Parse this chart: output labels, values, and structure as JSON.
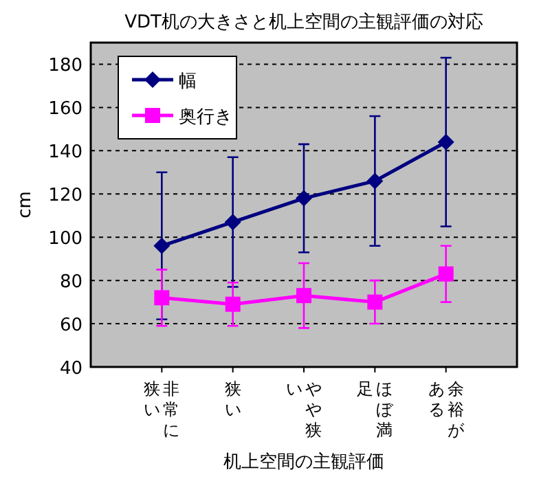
{
  "chart_data": {
    "type": "line",
    "title": "VDT机の大きさと机上空間の主観評価の対応",
    "xlabel": "机上空間の主観評価",
    "ylabel": "cm",
    "categories": [
      "非常に狭い",
      "狭い",
      "やや狭い",
      "ほぼ満足",
      "余裕がある"
    ],
    "series": [
      {
        "name": "幅",
        "color": "#000080",
        "marker": "diamond",
        "values": [
          96,
          107,
          118,
          126,
          144
        ],
        "errors": [
          34,
          30,
          25,
          30,
          39
        ]
      },
      {
        "name": "奥行き",
        "color": "#ff00ff",
        "marker": "square",
        "values": [
          72,
          69,
          73,
          70,
          83
        ],
        "errors": [
          13,
          10,
          15,
          10,
          13
        ]
      }
    ],
    "ylim": [
      40,
      190
    ],
    "yticks": [
      40,
      60,
      80,
      100,
      120,
      140,
      160,
      180
    ],
    "grid": "y",
    "legend": "top left",
    "line_style": "solid"
  }
}
